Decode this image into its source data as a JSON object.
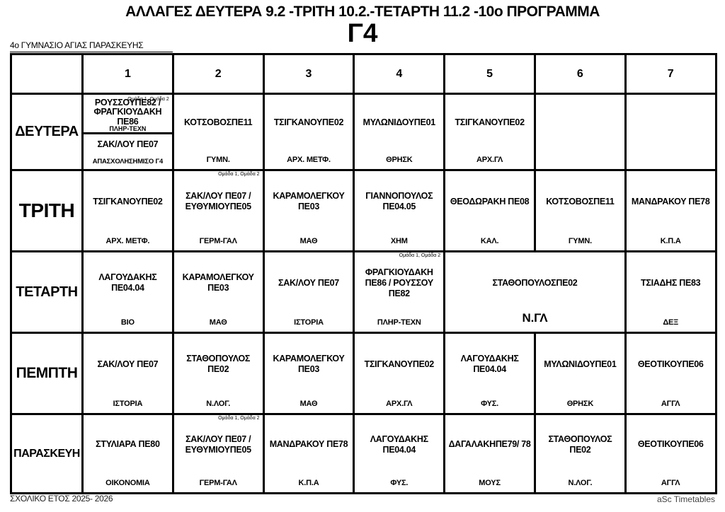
{
  "header": {
    "title": "ΑΛΛΑΓΕΣ ΔΕΥΤΕΡΑ 9.2 -ΤΡΙΤΗ 10.2.-ΤΕΤΑΡΤΗ 11.2 -10ο ΠΡΟΓΡΑΜΜΑ",
    "class_name": "Γ4",
    "school": "4ο ΓΥΜΝΑΣΙΟ ΑΓΙΑΣ ΠΑΡΑΣΚΕΥΗΣ"
  },
  "footer": {
    "left": "ΣΧΟΛΙΚΟ ΕΤΟΣ 2025- 2026",
    "right": "aSc Timetables"
  },
  "timetable": {
    "periods": [
      "1",
      "2",
      "3",
      "4",
      "5",
      "6",
      "7"
    ],
    "days": [
      {
        "name": "ΔΕΥΤΕΡΑ",
        "lessons": [
          {
            "type": "split",
            "parts": [
              {
                "group": "Ομάδα 1, Ομάδα 2",
                "teacher": "ΡΟΥΣΣΟΥΠΕ82 / ΦΡΑΓΚΙΟΥΔΑΚΗ ΠΕ86",
                "subject": "ΠΛΗΡ-ΤΕΧΝ"
              },
              {
                "teacher": "ΣΑΚ/ΛΟΥ ΠΕ07",
                "subject": "ΑΠΑΣΧΟΛΗΣΗΜΙΣΟ Γ4"
              }
            ]
          },
          {
            "teacher": "ΚΟΤΣΟΒΟΣΠΕ11",
            "subject": "ΓΥΜΝ."
          },
          {
            "teacher": "ΤΣΙΓΚΑΝΟΥΠΕ02",
            "subject": "ΑΡΧ. ΜΕΤΦ."
          },
          {
            "teacher": "ΜΥΛΩΝΙΔΟΥΠΕ01",
            "subject": "ΘΡΗΣΚ"
          },
          {
            "teacher": "ΤΣΙΓΚΑΝΟΥΠΕ02",
            "subject": "ΑΡΧ.ΓΛ"
          },
          {
            "type": "empty"
          },
          {
            "type": "empty"
          }
        ]
      },
      {
        "name": "ΤΡΙΤΗ",
        "lessons": [
          {
            "teacher": "ΤΣΙΓΚΑΝΟΥΠΕ02",
            "subject": "ΑΡΧ. ΜΕΤΦ."
          },
          {
            "group": "Ομάδα 1, Ομάδα 2",
            "teacher": "ΣΑΚ/ΛΟΥ ΠΕ07 / ΕΥΘΥΜΙΟΥΠΕ05",
            "subject": "ΓΕΡΜ-ΓΑΛ"
          },
          {
            "teacher": "ΚΑΡΑΜΟΛΕΓΚΟΥ ΠΕ03",
            "subject": "ΜΑΘ"
          },
          {
            "teacher": "ΓΙΑΝΝΟΠΟΥΛΟΣ ΠΕ04.05",
            "subject": "ΧΗΜ"
          },
          {
            "teacher": "ΘΕΟΔΩΡΑΚΗ ΠΕ08",
            "subject": "ΚΑΛ."
          },
          {
            "teacher": "ΚΟΤΣΟΒΟΣΠΕ11",
            "subject": "ΓΥΜΝ."
          },
          {
            "teacher": "ΜΑΝΔΡΑΚΟΥ ΠΕ78",
            "subject": "Κ.Π.Α"
          }
        ]
      },
      {
        "name": "ΤΕΤΑΡΤΗ",
        "lessons": [
          {
            "teacher": "ΛΑΓΟΥΔΑΚΗΣ ΠΕ04.04",
            "subject": "ΒΙΟ"
          },
          {
            "teacher": "ΚΑΡΑΜΟΛΕΓΚΟΥ ΠΕ03",
            "subject": "ΜΑΘ"
          },
          {
            "teacher": "ΣΑΚ/ΛΟΥ ΠΕ07",
            "subject": "ΙΣΤΟΡΙΑ"
          },
          {
            "group": "Ομάδα 1, Ομάδα 2",
            "teacher": "ΦΡΑΓΚΙΟΥΔΑΚΗ ΠΕ86 / ΡΟΥΣΣΟΥ ΠΕ82",
            "subject": "ΠΛΗΡ-ΤΕΧΝ"
          },
          {
            "teacher": "ΣΤΑΘΟΠΟΥΛΟΣΠΕ02",
            "subject": "Ν.ΓΛ",
            "colspan": 2,
            "subject_large": true
          },
          {
            "teacher": "ΤΣΙΑΔΗΣ ΠΕ83",
            "subject": "ΔΕΞ"
          }
        ]
      },
      {
        "name": "ΠΕΜΠΤΗ",
        "lessons": [
          {
            "teacher": "ΣΑΚ/ΛΟΥ ΠΕ07",
            "subject": "ΙΣΤΟΡΙΑ"
          },
          {
            "teacher": "ΣΤΑΘΟΠΟΥΛΟΣ ΠΕ02",
            "subject": "Ν.ΛΟΓ."
          },
          {
            "teacher": "ΚΑΡΑΜΟΛΕΓΚΟΥ ΠΕ03",
            "subject": "ΜΑΘ"
          },
          {
            "teacher": "ΤΣΙΓΚΑΝΟΥΠΕ02",
            "subject": "ΑΡΧ.ΓΛ"
          },
          {
            "teacher": "ΛΑΓΟΥΔΑΚΗΣ ΠΕ04.04",
            "subject": "ΦΥΣ."
          },
          {
            "teacher": "ΜΥΛΩΝΙΔΟΥΠΕ01",
            "subject": "ΘΡΗΣΚ"
          },
          {
            "teacher": "ΘΕΟΤΙΚΟΥΠΕ06",
            "subject": "ΑΓΓΛ"
          }
        ]
      },
      {
        "name": "ΠΑΡΑΣΚΕΥΗ",
        "lessons": [
          {
            "teacher": "ΣΤΥΛΙΑΡΑ ΠΕ80",
            "subject": "ΟΙΚΟΝΟΜΙΑ"
          },
          {
            "group": "Ομάδα 1, Ομάδα 2",
            "teacher": "ΣΑΚ/ΛΟΥ ΠΕ07 / ΕΥΘΥΜΙΟΥΠΕ05",
            "subject": "ΓΕΡΜ-ΓΑΛ"
          },
          {
            "teacher": "ΜΑΝΔΡΑΚΟΥ ΠΕ78",
            "subject": "Κ.Π.Α"
          },
          {
            "teacher": "ΛΑΓΟΥΔΑΚΗΣ ΠΕ04.04",
            "subject": "ΦΥΣ."
          },
          {
            "teacher": "ΔΑΓΑΛΑΚΗΠΕ79/ 78",
            "subject": "ΜΟΥΣ"
          },
          {
            "teacher": "ΣΤΑΘΟΠΟΥΛΟΣ ΠΕ02",
            "subject": "Ν.ΛΟΓ."
          },
          {
            "teacher": "ΘΕΟΤΙΚΟΥΠΕ06",
            "subject": "ΑΓΓΛ"
          }
        ]
      }
    ]
  }
}
